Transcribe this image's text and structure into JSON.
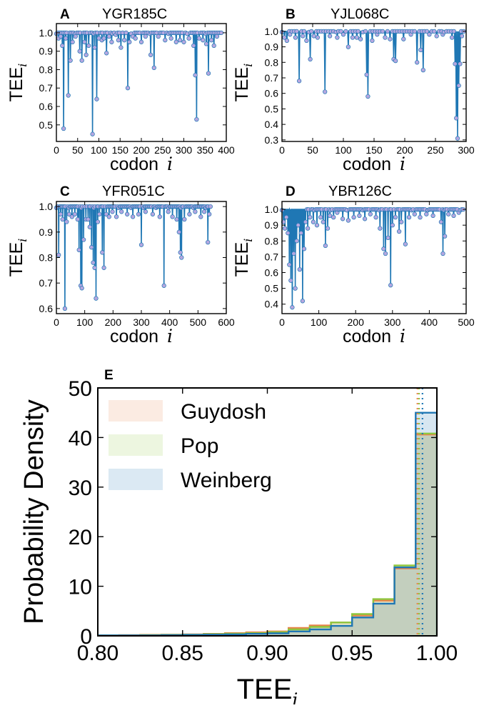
{
  "chart_data": [
    {
      "panel": "A",
      "type": "line",
      "title": "YGR185C",
      "xlabel": "codon i",
      "ylabel": "TEE i",
      "xlim": [
        0,
        400
      ],
      "ylim": [
        0.41,
        1.05
      ],
      "xticks": [
        0,
        50,
        100,
        150,
        200,
        250,
        300,
        350,
        400
      ],
      "yticks": [
        0.5,
        0.6,
        0.7,
        0.8,
        0.9,
        1.0
      ],
      "grid": false,
      "baseline": 1.0,
      "n": 390,
      "dips": [
        [
          5,
          0.97
        ],
        [
          10,
          0.98
        ],
        [
          14,
          0.93
        ],
        [
          17,
          0.48
        ],
        [
          22,
          0.97
        ],
        [
          28,
          0.66
        ],
        [
          33,
          0.85
        ],
        [
          38,
          0.95
        ],
        [
          45,
          0.98
        ],
        [
          55,
          0.9
        ],
        [
          60,
          0.85
        ],
        [
          66,
          0.95
        ],
        [
          70,
          0.88
        ],
        [
          76,
          0.93
        ],
        [
          85,
          0.45
        ],
        [
          90,
          0.92
        ],
        [
          95,
          0.64
        ],
        [
          100,
          0.97
        ],
        [
          107,
          0.96
        ],
        [
          112,
          0.97
        ],
        [
          118,
          0.89
        ],
        [
          124,
          0.98
        ],
        [
          130,
          0.95
        ],
        [
          140,
          0.99
        ],
        [
          146,
          0.96
        ],
        [
          152,
          0.92
        ],
        [
          160,
          0.96
        ],
        [
          168,
          0.7
        ],
        [
          172,
          0.95
        ],
        [
          180,
          0.98
        ],
        [
          186,
          0.97
        ],
        [
          200,
          0.95
        ],
        [
          210,
          0.98
        ],
        [
          222,
          0.88
        ],
        [
          230,
          0.81
        ],
        [
          240,
          0.98
        ],
        [
          256,
          0.96
        ],
        [
          270,
          0.97
        ],
        [
          282,
          0.95
        ],
        [
          291,
          0.96
        ],
        [
          300,
          0.95
        ],
        [
          312,
          0.97
        ],
        [
          323,
          0.93
        ],
        [
          327,
          0.77
        ],
        [
          330,
          0.53
        ],
        [
          336,
          0.97
        ],
        [
          345,
          0.96
        ],
        [
          353,
          0.94
        ],
        [
          358,
          0.78
        ],
        [
          365,
          0.96
        ],
        [
          371,
          0.93
        ],
        [
          378,
          0.98
        ]
      ]
    },
    {
      "panel": "B",
      "type": "line",
      "title": "YJL068C",
      "xlabel": "codon i",
      "ylabel": "TEE i",
      "xlim": [
        0,
        300
      ],
      "ylim": [
        0.29,
        1.05
      ],
      "xticks": [
        0,
        50,
        100,
        150,
        200,
        250,
        300
      ],
      "yticks": [
        0.3,
        0.4,
        0.5,
        0.6,
        0.7,
        0.8,
        0.9,
        1.0
      ],
      "grid": false,
      "baseline": 1.0,
      "n": 300,
      "dips": [
        [
          4,
          0.96
        ],
        [
          8,
          0.94
        ],
        [
          13,
          0.98
        ],
        [
          22,
          0.96
        ],
        [
          28,
          0.68
        ],
        [
          34,
          0.97
        ],
        [
          40,
          0.94
        ],
        [
          46,
          0.82
        ],
        [
          52,
          0.97
        ],
        [
          58,
          0.96
        ],
        [
          70,
          0.61
        ],
        [
          78,
          0.97
        ],
        [
          90,
          0.96
        ],
        [
          100,
          0.98
        ],
        [
          108,
          0.9
        ],
        [
          115,
          0.96
        ],
        [
          122,
          0.96
        ],
        [
          128,
          0.95
        ],
        [
          138,
          0.72
        ],
        [
          140,
          0.58
        ],
        [
          147,
          0.94
        ],
        [
          155,
          0.98
        ],
        [
          168,
          0.96
        ],
        [
          176,
          0.95
        ],
        [
          182,
          0.82
        ],
        [
          185,
          0.81
        ],
        [
          198,
          0.95
        ],
        [
          210,
          0.98
        ],
        [
          220,
          0.8
        ],
        [
          226,
          0.88
        ],
        [
          230,
          0.75
        ],
        [
          240,
          0.98
        ],
        [
          252,
          0.97
        ],
        [
          262,
          0.98
        ],
        [
          277,
          0.96
        ],
        [
          282,
          0.79
        ],
        [
          284,
          0.44
        ],
        [
          286,
          0.31
        ],
        [
          288,
          0.65
        ],
        [
          290,
          0.79
        ],
        [
          293,
          0.97
        ]
      ]
    },
    {
      "panel": "C",
      "type": "line",
      "title": "YFR051C",
      "xlabel": "codon i",
      "ylabel": "TEE i",
      "xlim": [
        0,
        600
      ],
      "ylim": [
        0.58,
        1.02
      ],
      "xticks": [
        0,
        100,
        200,
        300,
        400,
        500,
        600
      ],
      "yticks": [
        0.6,
        0.7,
        0.8,
        0.9,
        1.0
      ],
      "grid": false,
      "baseline": 1.0,
      "n": 545,
      "dips": [
        [
          8,
          0.81
        ],
        [
          15,
          0.97
        ],
        [
          22,
          0.95
        ],
        [
          30,
          0.6
        ],
        [
          36,
          0.94
        ],
        [
          45,
          0.97
        ],
        [
          55,
          0.96
        ],
        [
          65,
          0.97
        ],
        [
          75,
          0.95
        ],
        [
          80,
          0.83
        ],
        [
          86,
          0.69
        ],
        [
          90,
          0.68
        ],
        [
          96,
          0.87
        ],
        [
          104,
          0.95
        ],
        [
          112,
          0.95
        ],
        [
          118,
          0.92
        ],
        [
          124,
          0.84
        ],
        [
          130,
          0.78
        ],
        [
          135,
          0.76
        ],
        [
          140,
          0.64
        ],
        [
          146,
          0.94
        ],
        [
          152,
          0.97
        ],
        [
          162,
          0.82
        ],
        [
          168,
          0.76
        ],
        [
          176,
          0.97
        ],
        [
          186,
          0.96
        ],
        [
          198,
          0.98
        ],
        [
          212,
          0.96
        ],
        [
          230,
          0.98
        ],
        [
          250,
          0.97
        ],
        [
          270,
          0.96
        ],
        [
          290,
          0.97
        ],
        [
          300,
          0.85
        ],
        [
          315,
          0.98
        ],
        [
          340,
          0.97
        ],
        [
          365,
          0.96
        ],
        [
          380,
          0.69
        ],
        [
          395,
          0.98
        ],
        [
          410,
          0.96
        ],
        [
          425,
          0.95
        ],
        [
          433,
          0.9
        ],
        [
          438,
          0.82
        ],
        [
          442,
          0.8
        ],
        [
          452,
          0.95
        ],
        [
          470,
          0.97
        ],
        [
          490,
          0.98
        ],
        [
          510,
          0.96
        ],
        [
          522,
          0.98
        ],
        [
          535,
          0.86
        ],
        [
          540,
          0.97
        ]
      ]
    },
    {
      "panel": "D",
      "type": "line",
      "title": "YBR126C",
      "xlabel": "codon i",
      "ylabel": "TEE i",
      "xlim": [
        0,
        500
      ],
      "ylim": [
        0.34,
        1.05
      ],
      "xticks": [
        0,
        100,
        200,
        300,
        400,
        500
      ],
      "yticks": [
        0.4,
        0.5,
        0.6,
        0.7,
        0.8,
        0.9,
        1.0
      ],
      "grid": false,
      "baseline": 1.0,
      "n": 495,
      "dips": [
        [
          4,
          0.92
        ],
        [
          8,
          0.88
        ],
        [
          12,
          0.95
        ],
        [
          16,
          0.85
        ],
        [
          20,
          0.65
        ],
        [
          24,
          0.55
        ],
        [
          28,
          0.38
        ],
        [
          32,
          0.72
        ],
        [
          36,
          0.5
        ],
        [
          40,
          0.8
        ],
        [
          44,
          0.9
        ],
        [
          48,
          0.62
        ],
        [
          52,
          0.85
        ],
        [
          56,
          0.42
        ],
        [
          60,
          0.75
        ],
        [
          64,
          0.92
        ],
        [
          70,
          0.88
        ],
        [
          76,
          0.95
        ],
        [
          85,
          0.92
        ],
        [
          95,
          0.9
        ],
        [
          105,
          0.95
        ],
        [
          112,
          0.92
        ],
        [
          118,
          0.77
        ],
        [
          124,
          0.88
        ],
        [
          130,
          0.96
        ],
        [
          140,
          0.95
        ],
        [
          150,
          0.98
        ],
        [
          165,
          0.94
        ],
        [
          180,
          0.93
        ],
        [
          195,
          0.95
        ],
        [
          210,
          0.96
        ],
        [
          225,
          0.94
        ],
        [
          240,
          0.97
        ],
        [
          255,
          0.95
        ],
        [
          266,
          0.88
        ],
        [
          276,
          0.75
        ],
        [
          281,
          0.72
        ],
        [
          288,
          0.82
        ],
        [
          295,
          0.52
        ],
        [
          300,
          0.9
        ],
        [
          308,
          0.95
        ],
        [
          318,
          0.86
        ],
        [
          324,
          0.92
        ],
        [
          335,
          0.78
        ],
        [
          345,
          0.95
        ],
        [
          360,
          0.97
        ],
        [
          375,
          0.95
        ],
        [
          392,
          0.97
        ],
        [
          410,
          0.96
        ],
        [
          432,
          0.92
        ],
        [
          437,
          0.72
        ],
        [
          442,
          0.83
        ],
        [
          452,
          0.97
        ],
        [
          466,
          0.96
        ],
        [
          480,
          0.98
        ]
      ]
    },
    {
      "panel": "E",
      "type": "histogram",
      "xlabel": "TEE i",
      "ylabel": "Probability Density",
      "xlim": [
        0.8,
        1.0
      ],
      "ylim": [
        0,
        50
      ],
      "xticks": [
        0.8,
        0.85,
        0.9,
        0.95,
        1.0
      ],
      "yticks": [
        0,
        10,
        20,
        30,
        40,
        50
      ],
      "legend_position": "top-left",
      "grid": false,
      "bin_edges": [
        0.8,
        0.8125,
        0.825,
        0.8375,
        0.85,
        0.8625,
        0.875,
        0.8875,
        0.9,
        0.9125,
        0.925,
        0.9375,
        0.95,
        0.9625,
        0.975,
        0.9875,
        1.0
      ],
      "series": [
        {
          "name": "Guydosh",
          "color": "#e8844a",
          "values": [
            0.1,
            0.15,
            0.2,
            0.25,
            0.3,
            0.4,
            0.55,
            0.7,
            0.9,
            1.6,
            2.1,
            2.7,
            4.1,
            7.1,
            13.6,
            40.6
          ],
          "mean": 0.9885
        },
        {
          "name": "Pop",
          "color": "#8ec63f",
          "values": [
            0.1,
            0.1,
            0.15,
            0.2,
            0.25,
            0.35,
            0.45,
            0.55,
            0.75,
            1.3,
            1.8,
            2.7,
            4.4,
            7.4,
            14.2,
            40.8
          ],
          "mean": 0.9895
        },
        {
          "name": "Weinberg",
          "color": "#1f77b4",
          "values": [
            0.1,
            0.1,
            0.1,
            0.15,
            0.2,
            0.25,
            0.3,
            0.4,
            0.5,
            0.9,
            1.3,
            2.0,
            3.7,
            6.5,
            13.8,
            45.0
          ],
          "mean": 0.9915
        }
      ]
    }
  ]
}
